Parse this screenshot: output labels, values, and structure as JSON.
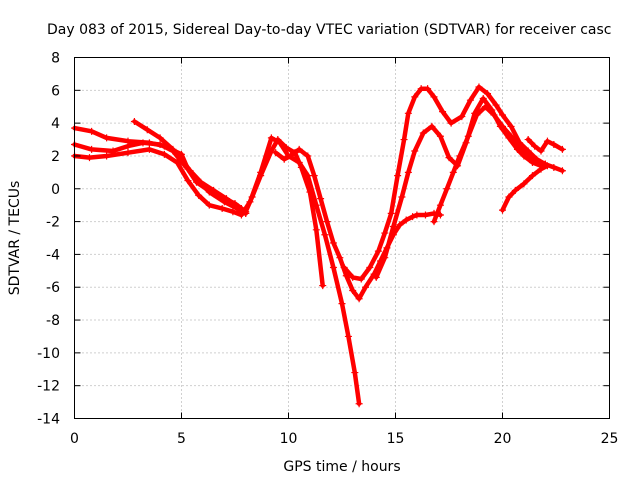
{
  "chart_data": {
    "type": "scatter",
    "title": "Day 083 of 2015, Sidereal Day-to-day VTEC variation (SDTVAR) for receiver casc",
    "xlabel": "GPS time / hours",
    "ylabel": "SDTVAR / TECUs",
    "xlim": [
      0,
      25
    ],
    "ylim": [
      -14,
      8
    ],
    "xticks": [
      0,
      5,
      10,
      15,
      20,
      25
    ],
    "yticks": [
      -14,
      -12,
      -10,
      -8,
      -6,
      -4,
      -2,
      0,
      2,
      4,
      6,
      8
    ],
    "grid": true,
    "color": "#ff0000",
    "series": [
      {
        "x": [
          0,
          0.8,
          1.5,
          2.5,
          3.5,
          4.2,
          5.0,
          5.3,
          5.7,
          6.5,
          7.5,
          8.0,
          8.3,
          8.7,
          9.2,
          9.5,
          9.9,
          10.3,
          10.6,
          11.0,
          11.3,
          11.6
        ],
        "y": [
          3.7,
          3.5,
          3.1,
          2.9,
          2.8,
          2.6,
          2.1,
          1.2,
          0.4,
          -0.3,
          -0.9,
          -1.4,
          -0.5,
          0.8,
          2.3,
          3.0,
          2.5,
          2.2,
          1.3,
          -0.2,
          -2.5,
          -5.9
        ]
      },
      {
        "x": [
          0,
          0.8,
          1.8,
          2.5,
          3.2,
          4.0,
          4.6,
          5.1,
          5.7,
          6.3,
          7.0,
          7.6,
          8.0
        ],
        "y": [
          2.7,
          2.4,
          2.3,
          2.6,
          2.8,
          2.7,
          2.3,
          1.5,
          0.6,
          -0.2,
          -0.8,
          -1.2,
          -1.5
        ]
      },
      {
        "x": [
          0,
          0.7,
          1.5,
          2.5,
          3.5,
          4.2,
          4.8,
          5.3,
          5.8,
          6.3,
          6.9,
          7.4,
          7.8,
          8.2,
          8.7,
          9.2,
          9.6,
          10.0,
          10.5,
          10.9,
          11.3,
          11.7,
          12.1,
          12.5,
          12.8,
          13.1,
          13.3
        ],
        "y": [
          2.0,
          1.9,
          2.0,
          2.2,
          2.4,
          2.1,
          1.6,
          0.5,
          -0.4,
          -1.0,
          -1.2,
          -1.4,
          -1.6,
          -0.8,
          1.0,
          3.1,
          2.8,
          2.0,
          1.6,
          0.8,
          -1.0,
          -2.8,
          -4.8,
          -7.0,
          -9.0,
          -11.2,
          -13.1
        ]
      },
      {
        "x": [
          2.8,
          3.4,
          4.0,
          4.6,
          5.0,
          5.4,
          5.9,
          6.5,
          7.1,
          7.8,
          8.0
        ],
        "y": [
          4.1,
          3.6,
          3.1,
          2.4,
          1.8,
          1.1,
          0.4,
          -0.1,
          -0.6,
          -1.2,
          -1.5
        ]
      },
      {
        "x": [
          9.4,
          9.8,
          10.1,
          10.5,
          10.9,
          11.2,
          11.5,
          11.8,
          12.1,
          12.4,
          12.7,
          13.0,
          13.3,
          13.6,
          14.0,
          14.3,
          14.6,
          14.9,
          15.2,
          15.5,
          15.8,
          16.0,
          16.4,
          16.8,
          17.1
        ],
        "y": [
          2.2,
          1.8,
          2.0,
          2.4,
          2.0,
          0.8,
          -0.6,
          -2.0,
          -3.3,
          -4.2,
          -5.3,
          -6.2,
          -6.7,
          -6.0,
          -5.2,
          -4.4,
          -3.6,
          -2.8,
          -2.2,
          -1.9,
          -1.7,
          -1.6,
          -1.6,
          -1.5,
          -1.6
        ]
      },
      {
        "x": [
          12.6,
          13.0,
          13.4,
          13.8,
          14.2,
          14.5,
          14.8,
          15.1,
          15.4,
          15.6,
          15.9,
          16.2,
          16.5,
          16.8,
          17.2,
          17.6,
          18.1,
          18.5,
          18.9,
          19.3,
          19.7,
          20.0,
          20.4,
          20.8,
          21.2,
          21.6,
          22.0,
          22.4,
          22.8
        ],
        "y": [
          -4.8,
          -5.4,
          -5.5,
          -4.8,
          -3.8,
          -2.7,
          -1.5,
          0.8,
          3.0,
          4.6,
          5.6,
          6.1,
          6.1,
          5.6,
          4.7,
          4.0,
          4.4,
          5.4,
          6.2,
          5.8,
          5.1,
          4.5,
          3.8,
          2.8,
          2.3,
          1.8,
          1.5,
          1.3,
          1.1
        ]
      },
      {
        "x": [
          14.1,
          14.5,
          14.9,
          15.3,
          15.6,
          15.9,
          16.3,
          16.7,
          17.1,
          17.5,
          17.9,
          18.3,
          18.7,
          19.1,
          19.5,
          19.9,
          20.3,
          20.7,
          21.0,
          21.4,
          21.8
        ],
        "y": [
          -5.4,
          -4.2,
          -2.3,
          -0.5,
          1.0,
          2.3,
          3.4,
          3.8,
          3.2,
          1.9,
          1.4,
          2.8,
          4.6,
          5.5,
          4.8,
          3.8,
          3.1,
          2.4,
          2.0,
          1.6,
          1.4
        ]
      },
      {
        "x": [
          16.8,
          17.1,
          17.4,
          17.7,
          18.0,
          18.4,
          18.8,
          19.2,
          19.6,
          20.0,
          20.4,
          20.8,
          21.2,
          21.6,
          22.0
        ],
        "y": [
          -2.0,
          -1.0,
          0.0,
          1.0,
          2.0,
          3.2,
          4.5,
          5.0,
          4.5,
          3.8,
          3.2,
          2.6,
          2.0,
          1.6,
          1.5
        ]
      },
      {
        "x": [
          20.0,
          20.3,
          20.6,
          21.0,
          21.4,
          21.8,
          22.1
        ],
        "y": [
          -1.3,
          -0.5,
          -0.1,
          0.3,
          0.8,
          1.2,
          1.4
        ]
      },
      {
        "x": [
          21.2,
          21.5,
          21.8,
          22.1,
          22.4,
          22.8
        ],
        "y": [
          3.0,
          2.6,
          2.3,
          2.9,
          2.7,
          2.4
        ]
      }
    ]
  }
}
